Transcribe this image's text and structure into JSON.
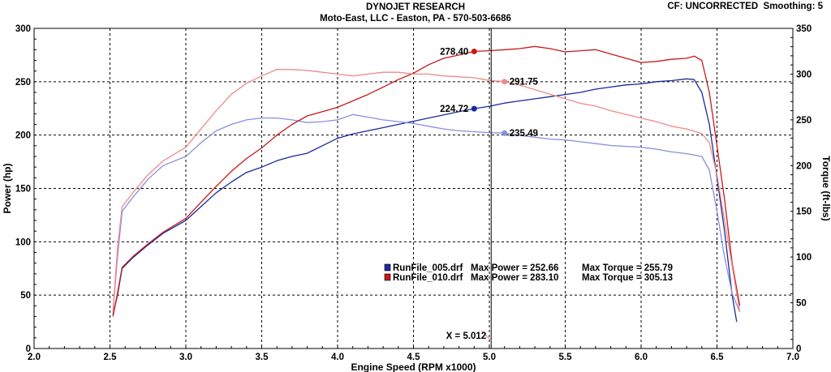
{
  "header": {
    "title": "DYNOJET RESEARCH",
    "subtitle": "Moto-East, LLC - Easton, PA - 570-503-6686",
    "cf_label": "CF: UNCORRECTED",
    "smoothing_label": "Smoothing: 5"
  },
  "chart_data": {
    "type": "line",
    "xlabel": "Engine Speed (RPM x1000)",
    "ylabel_left": "Power (hp)",
    "ylabel_right": "Torque (ft-lbs)",
    "xlim": [
      2.0,
      7.0
    ],
    "ylim_left": [
      0,
      300
    ],
    "ylim_right": [
      0,
      350
    ],
    "x_ticks": [
      "2.0",
      "2.5",
      "3.0",
      "3.5",
      "4.0",
      "4.5",
      "5.0",
      "5.5",
      "6.0",
      "6.5",
      "7.0"
    ],
    "y_left_ticks": [
      "0",
      "50",
      "100",
      "150",
      "200",
      "250",
      "300"
    ],
    "y_right_ticks": [
      "0",
      "50",
      "100",
      "150",
      "200",
      "250",
      "300",
      "350"
    ],
    "grid": true,
    "colors": {
      "run005_power": "#1a2a9c",
      "run005_torque": "#8890de",
      "run010_power": "#c81818",
      "run010_torque": "#ee8a8a",
      "cursor": "#000000",
      "grid": "#000000"
    },
    "series": [
      {
        "name": "RunFile_005.drf",
        "measure": "Power",
        "axis": "left",
        "x": [
          2.52,
          2.55,
          2.58,
          2.65,
          2.75,
          2.85,
          3.0,
          3.1,
          3.2,
          3.3,
          3.4,
          3.5,
          3.6,
          3.7,
          3.8,
          3.9,
          4.0,
          4.1,
          4.2,
          4.3,
          4.4,
          4.5,
          4.6,
          4.7,
          4.8,
          4.9,
          5.0,
          5.1,
          5.2,
          5.3,
          5.4,
          5.5,
          5.6,
          5.7,
          5.8,
          5.9,
          6.0,
          6.1,
          6.2,
          6.3,
          6.35,
          6.4,
          6.45,
          6.5,
          6.55,
          6.6,
          6.63
        ],
        "y": [
          32,
          50,
          75,
          85,
          97,
          108,
          120,
          133,
          146,
          156,
          165,
          170,
          176,
          180,
          183,
          190,
          197,
          201,
          204,
          207,
          210,
          213,
          216,
          219,
          222,
          224.72,
          227,
          230,
          232,
          234,
          236,
          238,
          240,
          243,
          245,
          247,
          248,
          250,
          251,
          252.66,
          252,
          240,
          210,
          160,
          110,
          50,
          25
        ]
      },
      {
        "name": "RunFile_005.drf",
        "measure": "Torque",
        "axis": "right",
        "x": [
          2.52,
          2.55,
          2.58,
          2.65,
          2.75,
          2.85,
          3.0,
          3.1,
          3.2,
          3.3,
          3.4,
          3.5,
          3.6,
          3.7,
          3.8,
          3.9,
          4.0,
          4.1,
          4.2,
          4.3,
          4.4,
          4.5,
          4.6,
          4.7,
          4.8,
          4.9,
          5.0,
          5.1,
          5.2,
          5.3,
          5.4,
          5.5,
          5.6,
          5.7,
          5.8,
          5.9,
          6.0,
          6.1,
          6.2,
          6.3,
          6.4,
          6.45,
          6.5,
          6.55,
          6.6,
          6.65
        ],
        "y": [
          40,
          100,
          150,
          165,
          185,
          200,
          210,
          225,
          238,
          245,
          250,
          252,
          252,
          250,
          247,
          248,
          250,
          255.79,
          253,
          250,
          248,
          246,
          243,
          240,
          238,
          237,
          236,
          235.49,
          233,
          231,
          229,
          228,
          226,
          224,
          222,
          221,
          220,
          218,
          215,
          213,
          210,
          195,
          150,
          100,
          60,
          40
        ]
      },
      {
        "name": "RunFile_010.drf",
        "measure": "Power",
        "axis": "left",
        "x": [
          2.52,
          2.55,
          2.58,
          2.65,
          2.75,
          2.85,
          3.0,
          3.1,
          3.2,
          3.3,
          3.4,
          3.5,
          3.6,
          3.7,
          3.8,
          3.9,
          4.0,
          4.1,
          4.2,
          4.3,
          4.4,
          4.5,
          4.6,
          4.7,
          4.8,
          4.9,
          5.0,
          5.1,
          5.2,
          5.3,
          5.4,
          5.5,
          5.6,
          5.7,
          5.8,
          5.9,
          6.0,
          6.1,
          6.2,
          6.3,
          6.35,
          6.4,
          6.45,
          6.5,
          6.55,
          6.6,
          6.65
        ],
        "y": [
          30,
          52,
          76,
          86,
          98,
          109,
          122,
          137,
          152,
          166,
          178,
          188,
          200,
          210,
          218,
          222,
          226,
          232,
          238,
          245,
          252,
          258,
          266,
          272,
          275,
          278.4,
          279,
          280,
          281,
          283.1,
          281,
          278,
          279,
          280,
          276,
          272,
          268,
          269,
          271,
          272,
          274,
          270,
          240,
          190,
          140,
          80,
          40
        ]
      },
      {
        "name": "RunFile_010.drf",
        "measure": "Torque",
        "axis": "right",
        "x": [
          2.52,
          2.55,
          2.58,
          2.65,
          2.75,
          2.85,
          3.0,
          3.1,
          3.2,
          3.3,
          3.4,
          3.5,
          3.6,
          3.7,
          3.8,
          3.9,
          4.0,
          4.1,
          4.2,
          4.3,
          4.4,
          4.5,
          4.6,
          4.7,
          4.8,
          4.9,
          5.0,
          5.1,
          5.2,
          5.3,
          5.4,
          5.5,
          5.6,
          5.7,
          5.8,
          5.9,
          6.0,
          6.1,
          6.2,
          6.3,
          6.4,
          6.45,
          6.5,
          6.55,
          6.6,
          6.65
        ],
        "y": [
          40,
          110,
          155,
          170,
          190,
          205,
          220,
          240,
          260,
          278,
          290,
          298,
          305.13,
          305,
          304,
          302,
          300,
          298,
          300,
          302,
          302,
          300,
          300,
          298,
          297,
          296,
          293,
          291.75,
          288,
          283,
          278,
          273,
          268,
          265,
          260,
          256,
          252,
          248,
          243,
          240,
          235,
          225,
          190,
          140,
          90,
          40
        ]
      }
    ],
    "markers": [
      {
        "label": "278.40",
        "x": 4.9,
        "y": 278.4,
        "axis": "left",
        "color": "#c81818",
        "side": "left"
      },
      {
        "label": "291.75",
        "x": 5.1,
        "y": 291.75,
        "axis": "right",
        "color": "#ee8a8a",
        "side": "right"
      },
      {
        "label": "224.72",
        "x": 4.9,
        "y": 224.72,
        "axis": "left",
        "color": "#1a2a9c",
        "side": "left"
      },
      {
        "label": "235.49",
        "x": 5.1,
        "y": 235.49,
        "axis": "right",
        "color": "#8890de",
        "side": "right"
      }
    ],
    "cursor": {
      "label": "X = 5.012",
      "x": 5.012
    },
    "legend": {
      "placement": "bottom-center",
      "entries": [
        {
          "file": "RunFile_005.drf",
          "max_power_label": "Max Power = 252.66",
          "max_torque_label": "Max Torque = 255.79",
          "color": "#1a2a9c"
        },
        {
          "file": "RunFile_010.drf",
          "max_power_label": "Max Power = 283.10",
          "max_torque_label": "Max Torque = 305.13",
          "color": "#c81818"
        }
      ]
    }
  }
}
